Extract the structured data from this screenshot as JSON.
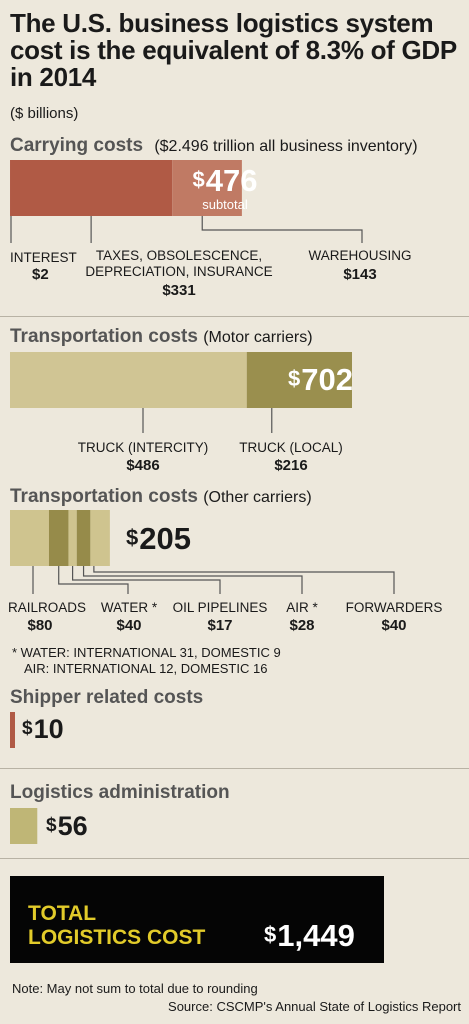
{
  "title": "The U.S. business logistics system cost is the equivalent of 8.3% of GDP in 2014",
  "units": "($ billions)",
  "carrying": {
    "heading": "Carrying costs",
    "sub": "($2.496 trillion all business inventory)",
    "total": "476",
    "subtotal_label": "subtotal",
    "items": [
      {
        "label": "INTEREST",
        "value": "$2"
      },
      {
        "label": "TAXES, OBSOLESCENCE,",
        "label2": "DEPRECIATION, INSURANCE",
        "value": "$331"
      },
      {
        "label": "WAREHOUSING",
        "value": "$143"
      }
    ]
  },
  "motor": {
    "heading": "Transportation costs",
    "sub": "(Motor carriers)",
    "total": "702",
    "items": [
      {
        "label": "TRUCK (INTERCITY)",
        "value": "$486"
      },
      {
        "label": "TRUCK (LOCAL)",
        "value": "$216"
      }
    ]
  },
  "other": {
    "heading": "Transportation costs",
    "sub": "(Other carriers)",
    "total": "205",
    "items": [
      {
        "label": "RAILROADS",
        "value": "$80"
      },
      {
        "label": "WATER *",
        "value": "$40"
      },
      {
        "label": "OIL PIPELINES",
        "value": "$17"
      },
      {
        "label": "AIR *",
        "value": "$28"
      },
      {
        "label": "FORWARDERS",
        "value": "$40"
      }
    ],
    "footnote1": "*  WATER: INTERNATIONAL 31, DOMESTIC 9",
    "footnote2": "AIR: INTERNATIONAL 12, DOMESTIC 16"
  },
  "shipper": {
    "heading": "Shipper related costs",
    "total": "10"
  },
  "admin": {
    "heading": "Logistics administration",
    "total": "56"
  },
  "total": {
    "line1": "TOTAL",
    "line2": "LOGISTICS COST",
    "value": "1,449"
  },
  "dollar_sign": "$",
  "note": "Note: May not sum to total due to rounding",
  "source": "Source: CSCMP's Annual State of Logistics Report",
  "colors": {
    "background": "#ede8dc",
    "carrying": "#b05a45",
    "carrying_light": "#c07a64",
    "motor_light": "#d0c594",
    "motor_dark": "#9a8f4e",
    "other_light": "#cfc48f",
    "other_dark": "#968b4a",
    "admin": "#bfb676",
    "total_bg": "#050505",
    "total_text": "#e2cb2a"
  },
  "chart_data": {
    "type": "bar",
    "title": "The U.S. business logistics system cost is the equivalent of 8.3% of GDP in 2014",
    "units": "($ billions)",
    "groups": [
      {
        "name": "Carrying costs",
        "total": 476,
        "categories": [
          "INTEREST",
          "TAXES, OBSOLESCENCE, DEPRECIATION, INSURANCE",
          "WAREHOUSING"
        ],
        "values": [
          2,
          331,
          143
        ]
      },
      {
        "name": "Transportation costs (Motor carriers)",
        "total": 702,
        "categories": [
          "TRUCK (INTERCITY)",
          "TRUCK (LOCAL)"
        ],
        "values": [
          486,
          216
        ]
      },
      {
        "name": "Transportation costs (Other carriers)",
        "total": 205,
        "categories": [
          "RAILROADS",
          "WATER",
          "OIL PIPELINES",
          "AIR",
          "FORWARDERS"
        ],
        "values": [
          80,
          40,
          17,
          28,
          40
        ]
      },
      {
        "name": "Shipper related costs",
        "total": 10,
        "categories": [
          "Shipper related costs"
        ],
        "values": [
          10
        ]
      },
      {
        "name": "Logistics administration",
        "total": 56,
        "categories": [
          "Logistics administration"
        ],
        "values": [
          56
        ]
      }
    ],
    "grand_total": 1449
  }
}
